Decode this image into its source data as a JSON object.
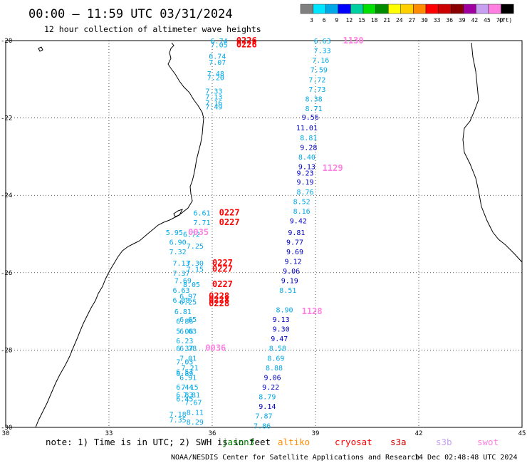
{
  "header": {
    "title": "00:00 — 11:59 UTC 03/31/2024",
    "subtitle": "12 hour collection of altimeter wave heights"
  },
  "legend": {
    "unit": "(ft)",
    "bins": [
      {
        "label": "3",
        "color": "#7f7f7f"
      },
      {
        "label": "6",
        "color": "#00e5ff"
      },
      {
        "label": "9",
        "color": "#00a8e8"
      },
      {
        "label": "12",
        "color": "#0000ff"
      },
      {
        "label": "15",
        "color": "#00d0a0"
      },
      {
        "label": "18",
        "color": "#00e000"
      },
      {
        "label": "21",
        "color": "#008c00"
      },
      {
        "label": "24",
        "color": "#ffff00"
      },
      {
        "label": "27",
        "color": "#ffd000"
      },
      {
        "label": "30",
        "color": "#ff8c00"
      },
      {
        "label": "33",
        "color": "#ff0000"
      },
      {
        "label": "36",
        "color": "#cc0000"
      },
      {
        "label": "39",
        "color": "#880000"
      },
      {
        "label": "42",
        "color": "#a000a0"
      },
      {
        "label": "45",
        "color": "#c8a0f0"
      },
      {
        "label": "70",
        "color": "#ff80e0"
      },
      {
        "label": "",
        "color": "#000000"
      }
    ]
  },
  "axes": {
    "y_ticks": [
      {
        "label": "-20",
        "lat": -20
      },
      {
        "label": "-22",
        "lat": -22
      },
      {
        "label": "-24",
        "lat": -24
      },
      {
        "label": "-26",
        "lat": -26
      },
      {
        "label": "-28",
        "lat": -28
      },
      {
        "label": "-30",
        "lat": -30
      }
    ],
    "x_ticks": [
      {
        "label": "30",
        "lon": 30
      },
      {
        "label": "33",
        "lon": 33
      },
      {
        "label": "36",
        "lon": 36
      },
      {
        "label": "39",
        "lon": 39
      },
      {
        "label": "42",
        "lon": 42
      },
      {
        "label": "45",
        "lon": 45
      }
    ]
  },
  "pass_labels": [
    {
      "text": "0226",
      "lat": -20.0,
      "lon": 36.7,
      "color": "#ff0000"
    },
    {
      "text": "0226",
      "lat": -20.1,
      "lon": 36.7,
      "color": "#ff0000"
    },
    {
      "text": "1130",
      "lat": -20.0,
      "lon": 39.8,
      "color": "#ff80e0"
    },
    {
      "text": "1129",
      "lat": -23.3,
      "lon": 39.2,
      "color": "#ff80e0"
    },
    {
      "text": "0227",
      "lat": -24.45,
      "lon": 36.2,
      "color": "#ff0000"
    },
    {
      "text": "0227",
      "lat": -24.7,
      "lon": 36.2,
      "color": "#ff0000"
    },
    {
      "text": "0035",
      "lat": -24.95,
      "lon": 35.3,
      "color": "#ff80e0"
    },
    {
      "text": "0227",
      "lat": -25.75,
      "lon": 36.0,
      "color": "#ff0000"
    },
    {
      "text": "0227",
      "lat": -25.9,
      "lon": 36.0,
      "color": "#ff0000"
    },
    {
      "text": "0227",
      "lat": -26.3,
      "lon": 36.0,
      "color": "#ff0000"
    },
    {
      "text": "0228",
      "lat": -26.6,
      "lon": 35.9,
      "color": "#ff0000"
    },
    {
      "text": "0228",
      "lat": -26.7,
      "lon": 35.9,
      "color": "#ff0000"
    },
    {
      "text": "0228",
      "lat": -26.8,
      "lon": 35.9,
      "color": "#ff0000"
    },
    {
      "text": "1128",
      "lat": -27.0,
      "lon": 38.6,
      "color": "#ff80e0"
    },
    {
      "text": "0036",
      "lat": -27.95,
      "lon": 35.8,
      "color": "#ff80e0"
    }
  ],
  "tracks": [
    {
      "name": "west",
      "points": [
        {
          "v": "6.74",
          "lat": -20.0,
          "lon": 36.2,
          "c": "#00a8e8"
        },
        {
          "v": "7.05",
          "lat": -20.1,
          "lon": 36.2,
          "c": "#00a8e8"
        },
        {
          "v": "6.74",
          "lat": -20.4,
          "lon": 36.15,
          "c": "#00a8e8"
        },
        {
          "v": "7.07",
          "lat": -20.55,
          "lon": 36.15,
          "c": "#00a8e8"
        },
        {
          "v": "7.48",
          "lat": -20.85,
          "lon": 36.1,
          "c": "#00a8e8"
        },
        {
          "v": "7.20",
          "lat": -20.95,
          "lon": 36.1,
          "c": "#00a8e8"
        },
        {
          "v": "7.33",
          "lat": -21.3,
          "lon": 36.05,
          "c": "#00a8e8"
        },
        {
          "v": "7.13",
          "lat": -21.45,
          "lon": 36.05,
          "c": "#00a8e8"
        },
        {
          "v": "7.16",
          "lat": -21.6,
          "lon": 36.05,
          "c": "#00a8e8"
        },
        {
          "v": "7.49",
          "lat": -21.7,
          "lon": 36.05,
          "c": "#00a8e8"
        },
        {
          "v": "6.61",
          "lat": -24.45,
          "lon": 35.7,
          "c": "#00a8e8"
        },
        {
          "v": "7.71",
          "lat": -24.7,
          "lon": 35.7,
          "c": "#00a8e8"
        },
        {
          "v": "5.95",
          "lat": -24.95,
          "lon": 34.9,
          "c": "#00a8e8"
        },
        {
          "v": "6.72",
          "lat": -25.0,
          "lon": 35.4,
          "c": "#00a8e8"
        },
        {
          "v": "6.90",
          "lat": -25.2,
          "lon": 35.0,
          "c": "#00a8e8"
        },
        {
          "v": "7.25",
          "lat": -25.3,
          "lon": 35.5,
          "c": "#00a8e8"
        },
        {
          "v": "7.32",
          "lat": -25.45,
          "lon": 35.0,
          "c": "#00a8e8"
        },
        {
          "v": "7.13",
          "lat": -25.75,
          "lon": 35.1,
          "c": "#00a8e8"
        },
        {
          "v": "7.30",
          "lat": -25.75,
          "lon": 35.5,
          "c": "#00a8e8"
        },
        {
          "v": "7.15",
          "lat": -25.9,
          "lon": 35.5,
          "c": "#00a8e8"
        },
        {
          "v": "7.37",
          "lat": -26.0,
          "lon": 35.1,
          "c": "#00a8e8"
        },
        {
          "v": "7.69",
          "lat": -26.2,
          "lon": 35.15,
          "c": "#00a8e8"
        },
        {
          "v": "8.05",
          "lat": -26.3,
          "lon": 35.4,
          "c": "#00a8e8"
        },
        {
          "v": "6.63",
          "lat": -26.45,
          "lon": 35.1,
          "c": "#00a8e8"
        },
        {
          "v": "6.97",
          "lat": -26.6,
          "lon": 35.3,
          "c": "#00a8e8"
        },
        {
          "v": "6.38",
          "lat": -26.7,
          "lon": 35.1,
          "c": "#00a8e8"
        },
        {
          "v": "6.25",
          "lat": -26.75,
          "lon": 35.3,
          "c": "#00a8e8"
        },
        {
          "v": "6.81",
          "lat": -27.0,
          "lon": 35.15,
          "c": "#00a8e8"
        },
        {
          "v": "6.65",
          "lat": -27.2,
          "lon": 35.3,
          "c": "#00a8e8"
        },
        {
          "v": "6.86",
          "lat": -27.25,
          "lon": 35.2,
          "c": "#00a8e8"
        },
        {
          "v": "6.63",
          "lat": -27.5,
          "lon": 35.3,
          "c": "#00a8e8"
        },
        {
          "v": "5.08",
          "lat": -27.5,
          "lon": 35.2,
          "c": "#00a8e8"
        },
        {
          "v": "6.23",
          "lat": -27.75,
          "lon": 35.2,
          "c": "#00a8e8"
        },
        {
          "v": "6.37",
          "lat": -27.95,
          "lon": 35.2,
          "c": "#00a8e8"
        },
        {
          "v": "6.78",
          "lat": -27.95,
          "lon": 35.3,
          "c": "#00a8e8"
        },
        {
          "v": "7.01",
          "lat": -28.2,
          "lon": 35.3,
          "c": "#00a8e8"
        },
        {
          "v": "7.03",
          "lat": -28.3,
          "lon": 35.2,
          "c": "#00a8e8"
        },
        {
          "v": "7.21",
          "lat": -28.45,
          "lon": 35.35,
          "c": "#00a8e8"
        },
        {
          "v": "6.57",
          "lat": -28.55,
          "lon": 35.2,
          "c": "#00a8e8"
        },
        {
          "v": "6.89",
          "lat": -28.6,
          "lon": 35.2,
          "c": "#00a8e8"
        },
        {
          "v": "6.91",
          "lat": -28.7,
          "lon": 35.3,
          "c": "#00a8e8"
        },
        {
          "v": "6.44",
          "lat": -28.95,
          "lon": 35.2,
          "c": "#00a8e8"
        },
        {
          "v": "7.15",
          "lat": -28.95,
          "lon": 35.35,
          "c": "#00a8e8"
        },
        {
          "v": "6.83",
          "lat": -29.15,
          "lon": 35.2,
          "c": "#00a8e8"
        },
        {
          "v": "7.81",
          "lat": -29.15,
          "lon": 35.4,
          "c": "#00a8e8"
        },
        {
          "v": "6.45",
          "lat": -29.25,
          "lon": 35.2,
          "c": "#00a8e8"
        },
        {
          "v": "7.67",
          "lat": -29.35,
          "lon": 35.45,
          "c": "#00a8e8"
        },
        {
          "v": "7.18",
          "lat": -29.65,
          "lon": 35.0,
          "c": "#00a8e8"
        },
        {
          "v": "8.11",
          "lat": -29.6,
          "lon": 35.5,
          "c": "#00a8e8"
        },
        {
          "v": "7.35",
          "lat": -29.8,
          "lon": 35.0,
          "c": "#00a8e8"
        },
        {
          "v": "8.29",
          "lat": -29.85,
          "lon": 35.5,
          "c": "#00a8e8"
        }
      ]
    },
    {
      "name": "east",
      "points": [
        {
          "v": "6.63",
          "lat": -20.0,
          "lon": 39.2,
          "c": "#00a8e8"
        },
        {
          "v": "7.33",
          "lat": -20.25,
          "lon": 39.2,
          "c": "#00a8e8"
        },
        {
          "v": "7.16",
          "lat": -20.5,
          "lon": 39.15,
          "c": "#00a8e8"
        },
        {
          "v": "7.59",
          "lat": -20.75,
          "lon": 39.1,
          "c": "#00a8e8"
        },
        {
          "v": "7.72",
          "lat": -21.0,
          "lon": 39.05,
          "c": "#00a8e8"
        },
        {
          "v": "7.73",
          "lat": -21.25,
          "lon": 39.05,
          "c": "#00a8e8"
        },
        {
          "v": "8.38",
          "lat": -21.5,
          "lon": 38.95,
          "c": "#00a8e8"
        },
        {
          "v": "8.71",
          "lat": -21.75,
          "lon": 38.95,
          "c": "#00a8e8"
        },
        {
          "v": "9.56",
          "lat": -21.97,
          "lon": 38.85,
          "c": "#0000c0"
        },
        {
          "v": "11.01",
          "lat": -22.25,
          "lon": 38.75,
          "c": "#0000c0"
        },
        {
          "v": "8.81",
          "lat": -22.5,
          "lon": 38.8,
          "c": "#00a8e8"
        },
        {
          "v": "9.28",
          "lat": -22.75,
          "lon": 38.8,
          "c": "#0000c0"
        },
        {
          "v": "8.40",
          "lat": -23.0,
          "lon": 38.75,
          "c": "#00a8e8"
        },
        {
          "v": "9.13",
          "lat": -23.25,
          "lon": 38.75,
          "c": "#0000c0"
        },
        {
          "v": "9.23",
          "lat": -23.42,
          "lon": 38.7,
          "c": "#0000c0"
        },
        {
          "v": "9.19",
          "lat": -23.65,
          "lon": 38.7,
          "c": "#0000c0"
        },
        {
          "v": "8.76",
          "lat": -23.9,
          "lon": 38.7,
          "c": "#00a8e8"
        },
        {
          "v": "8.52",
          "lat": -24.15,
          "lon": 38.6,
          "c": "#00a8e8"
        },
        {
          "v": "8.16",
          "lat": -24.4,
          "lon": 38.6,
          "c": "#00a8e8"
        },
        {
          "v": "9.42",
          "lat": -24.65,
          "lon": 38.5,
          "c": "#0000c0"
        },
        {
          "v": "9.81",
          "lat": -24.95,
          "lon": 38.45,
          "c": "#0000c0"
        },
        {
          "v": "9.77",
          "lat": -25.2,
          "lon": 38.4,
          "c": "#0000c0"
        },
        {
          "v": "9.69",
          "lat": -25.45,
          "lon": 38.4,
          "c": "#0000c0"
        },
        {
          "v": "9.12",
          "lat": -25.7,
          "lon": 38.35,
          "c": "#0000c0"
        },
        {
          "v": "9.06",
          "lat": -25.95,
          "lon": 38.3,
          "c": "#0000c0"
        },
        {
          "v": "9.19",
          "lat": -26.2,
          "lon": 38.25,
          "c": "#0000c0"
        },
        {
          "v": "8.51",
          "lat": -26.45,
          "lon": 38.2,
          "c": "#00a8e8"
        },
        {
          "v": "8.90",
          "lat": -26.95,
          "lon": 38.1,
          "c": "#00a8e8"
        },
        {
          "v": "9.13",
          "lat": -27.2,
          "lon": 38.0,
          "c": "#0000c0"
        },
        {
          "v": "9.30",
          "lat": -27.45,
          "lon": 38.0,
          "c": "#0000c0"
        },
        {
          "v": "9.47",
          "lat": -27.7,
          "lon": 37.95,
          "c": "#0000c0"
        },
        {
          "v": "8.58",
          "lat": -27.95,
          "lon": 37.9,
          "c": "#00a8e8"
        },
        {
          "v": "8.69",
          "lat": -28.2,
          "lon": 37.85,
          "c": "#00a8e8"
        },
        {
          "v": "8.88",
          "lat": -28.45,
          "lon": 37.8,
          "c": "#00a8e8"
        },
        {
          "v": "9.06",
          "lat": -28.7,
          "lon": 37.75,
          "c": "#0000c0"
        },
        {
          "v": "9.22",
          "lat": -28.95,
          "lon": 37.7,
          "c": "#0000c0"
        },
        {
          "v": "8.79",
          "lat": -29.2,
          "lon": 37.6,
          "c": "#00a8e8"
        },
        {
          "v": "9.14",
          "lat": -29.45,
          "lon": 37.6,
          "c": "#0000c0"
        },
        {
          "v": "7.87",
          "lat": -29.7,
          "lon": 37.5,
          "c": "#00a8e8"
        },
        {
          "v": "7.86",
          "lat": -29.95,
          "lon": 37.45,
          "c": "#00a8e8"
        }
      ]
    }
  ],
  "footer": {
    "note_prefix": "note:  1) Time is in UTC; 2) SWH is in feet",
    "satellites": [
      {
        "name": "jason3",
        "color": "#008000"
      },
      {
        "name": "altiko",
        "color": "#ff8c00"
      },
      {
        "name": "cryosat",
        "color": "#ff0000"
      },
      {
        "name": "s3a",
        "color": "#cc0000"
      },
      {
        "name": "s3b",
        "color": "#c8a0f0"
      },
      {
        "name": "swot",
        "color": "#ff80e0"
      }
    ],
    "credit": "NOAA/NESDIS Center for Satellite Applications and Research",
    "timestamp": "14 Dec 02:48:48 UTC 2024"
  },
  "colors": {
    "land_outline": "#000000",
    "grid": "#000000",
    "background": "#ffffff"
  }
}
